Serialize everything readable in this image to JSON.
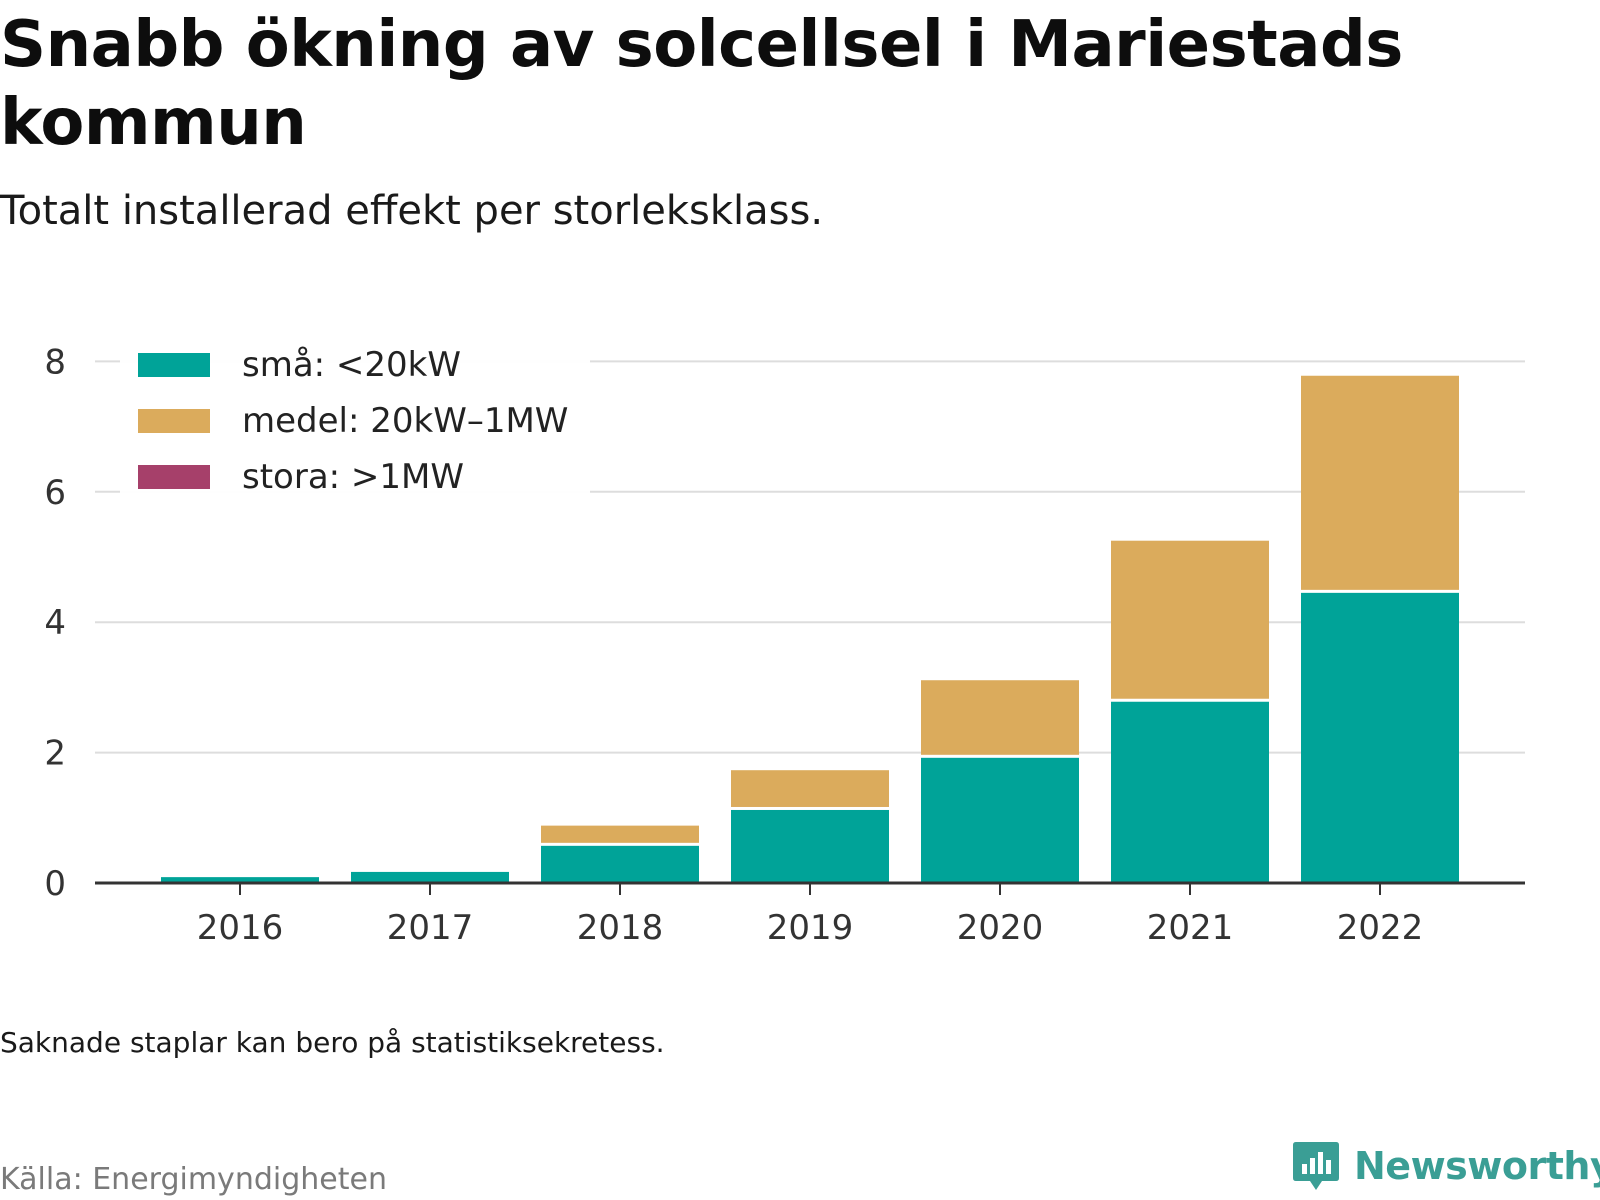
{
  "header": {
    "title": "Snabb ökning av solcellsel i Mariestads kommun",
    "subtitle": "Totalt installerad effekt per storleksklass."
  },
  "footer": {
    "note": "Saknade staplar kan bero på statistiksekretess.",
    "source": "Källa: Energimyndigheten",
    "brand": "Newsworthy"
  },
  "legend": {
    "placement": "top-left",
    "items": [
      {
        "label": "små: <20kW",
        "color": "#00a398"
      },
      {
        "label": "medel: 20kW–1MW",
        "color": "#dbab5c"
      },
      {
        "label": "stora: >1MW",
        "color": "#a6406a"
      }
    ]
  },
  "colors": {
    "grid": "#dddddd",
    "axis": "#333333",
    "tick_text": "#333333",
    "brand": "#3a9e95"
  },
  "chart_data": {
    "type": "bar",
    "stacked": true,
    "categories": [
      "2016",
      "2017",
      "2018",
      "2019",
      "2020",
      "2021",
      "2022"
    ],
    "series": [
      {
        "name": "små: <20kW",
        "color": "#00a398",
        "values": [
          0.09,
          0.17,
          0.57,
          1.12,
          1.92,
          2.78,
          4.45
        ]
      },
      {
        "name": "medel: 20kW–1MW",
        "color": "#dbab5c",
        "values": [
          0.0,
          0.0,
          0.31,
          0.61,
          1.19,
          2.47,
          3.33
        ]
      },
      {
        "name": "stora: >1MW",
        "color": "#a6406a",
        "values": [
          0,
          0,
          0,
          0,
          0,
          0,
          0
        ]
      }
    ],
    "ylim": [
      0,
      8
    ],
    "yticks": [
      0,
      2,
      4,
      6,
      8
    ],
    "grid": true,
    "title": "Snabb ökning av solcellsel i Mariestads kommun",
    "subtitle": "Totalt installerad effekt per storleksklass.",
    "xlabel": "",
    "ylabel": ""
  }
}
